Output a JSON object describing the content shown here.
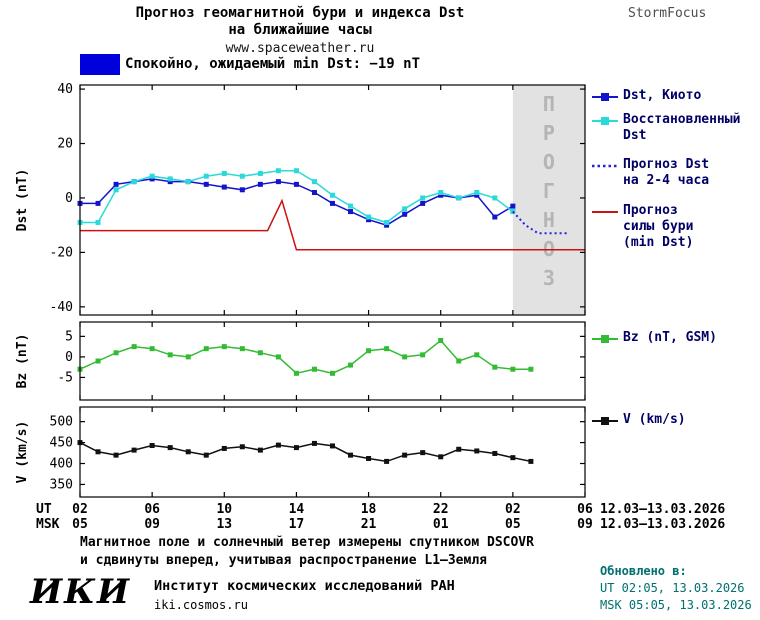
{
  "header": {
    "title_line1": "Прогноз геомагнитной бури и индекса Dst",
    "title_line2": "на ближайшие часы",
    "site": "www.spaceweather.ru",
    "brand": "StormFocus"
  },
  "status": {
    "text": "Спокойно, ожидаемый min Dst: −19 nT",
    "color": "#0000dd"
  },
  "legends": {
    "dst_kyoto": "Dst, Киото",
    "restored_line1": "Восстановленный",
    "restored_line2": "Dst",
    "forecast_line1": "Прогноз Dst",
    "forecast_line2": "на 2-4 часа",
    "storm_line1": "Прогноз",
    "storm_line2": "силы бури",
    "storm_line3": "(min Dst)",
    "bz": "Bz (nT, GSM)",
    "v": "V (km/s)"
  },
  "xaxis": {
    "ticks": [
      2,
      6,
      10,
      14,
      18,
      22,
      26,
      30
    ],
    "ut_row_label": "UT",
    "msk_row_label": "MSK",
    "ut_labels": [
      "02",
      "06",
      "10",
      "14",
      "18",
      "22",
      "02",
      "06"
    ],
    "msk_labels": [
      "05",
      "09",
      "13",
      "17",
      "21",
      "01",
      "05",
      "09"
    ],
    "ut_date": "12.03—13.03.2026",
    "msk_date": "12.03—13.03.2026"
  },
  "chart_data": [
    {
      "type": "line",
      "name": "dst",
      "ylabel": "Dst (nT)",
      "ylim": [
        -43,
        41.5
      ],
      "yticks": [
        40,
        20,
        0,
        -20,
        -40
      ],
      "xlim": [
        2,
        30
      ],
      "forecast_band": {
        "from": 26,
        "to": 30,
        "label": "ПРОГНОЗ",
        "fill": "#e2e2e2",
        "text_color": "#b5b5b5"
      },
      "series": [
        {
          "name": "Dst, Киото",
          "color": "#1414cc",
          "marker": "square",
          "x": [
            2,
            3,
            4,
            5,
            6,
            7,
            8,
            9,
            10,
            11,
            12,
            13,
            14,
            15,
            16,
            17,
            18,
            19,
            20,
            21,
            22,
            23,
            24,
            25,
            26
          ],
          "y": [
            -2,
            -2,
            5,
            6,
            7,
            6,
            6,
            5,
            4,
            3,
            5,
            6,
            5,
            2,
            -2,
            -5,
            -8,
            -10,
            -6,
            -2,
            1,
            0,
            1,
            -7,
            -3
          ]
        },
        {
          "name": "Восстановленный Dst",
          "color": "#2ad9d9",
          "marker": "square",
          "x": [
            2,
            3,
            4,
            5,
            6,
            7,
            8,
            9,
            10,
            11,
            12,
            13,
            14,
            15,
            16,
            17,
            18,
            19,
            20,
            21,
            22,
            23,
            24,
            25,
            26
          ],
          "y": [
            -9,
            -9,
            3,
            6,
            8,
            7,
            6,
            8,
            9,
            8,
            9,
            10,
            10,
            6,
            1,
            -3,
            -7,
            -9,
            -4,
            0,
            2,
            0,
            2,
            0,
            -5
          ]
        },
        {
          "name": "Прогноз Dst на 2-4 часа",
          "color": "#2222dd",
          "style": "dotted",
          "width": 2,
          "x": [
            26,
            26.7,
            27.4,
            28.2,
            29
          ],
          "y": [
            -5,
            -10,
            -13,
            -13,
            -13
          ]
        },
        {
          "name": "Прогноз силы бури (min Dst)",
          "color": "#cc1111",
          "x": [
            2,
            12.4,
            13.2,
            14,
            30
          ],
          "y": [
            -12,
            -12,
            -1,
            -19,
            -19
          ]
        }
      ]
    },
    {
      "type": "line",
      "name": "bz",
      "ylabel": "Bz (nT)",
      "ylim": [
        -10.5,
        8.5
      ],
      "yticks": [
        5,
        0,
        -5
      ],
      "xlim": [
        2,
        30
      ],
      "series": [
        {
          "name": "Bz (nT, GSM)",
          "color": "#33bb33",
          "marker": "square",
          "x": [
            2,
            3,
            4,
            5,
            6,
            7,
            8,
            9,
            10,
            11,
            12,
            13,
            14,
            15,
            16,
            17,
            18,
            19,
            20,
            21,
            22,
            23,
            24,
            25,
            26,
            27
          ],
          "y": [
            -3,
            -1,
            1,
            2.5,
            2,
            0.5,
            0,
            2,
            2.5,
            2,
            1,
            0,
            -4,
            -3,
            -4,
            -2,
            1.5,
            2,
            0,
            0.5,
            4,
            -1,
            0.5,
            -2.5,
            -3,
            -3
          ]
        }
      ]
    },
    {
      "type": "line",
      "name": "v",
      "ylabel": "V (km/s)",
      "ylim": [
        320,
        535
      ],
      "yticks": [
        500,
        450,
        400,
        350
      ],
      "xlim": [
        2,
        30
      ],
      "series": [
        {
          "name": "V (km/s)",
          "color": "#111111",
          "marker": "square",
          "x": [
            2,
            3,
            4,
            5,
            6,
            7,
            8,
            9,
            10,
            11,
            12,
            13,
            14,
            15,
            16,
            17,
            18,
            19,
            20,
            21,
            22,
            23,
            24,
            25,
            26,
            27
          ],
          "y": [
            450,
            428,
            420,
            432,
            443,
            438,
            428,
            420,
            436,
            440,
            432,
            444,
            438,
            448,
            442,
            420,
            412,
            405,
            420,
            426,
            416,
            434,
            430,
            424,
            414,
            405
          ]
        }
      ]
    }
  ],
  "footer": {
    "note_line1": "Магнитное поле и солнечный ветер измерены спутником DSCOVR",
    "note_line2": "и сдвинуты вперед, учитывая распространение L1—Земля",
    "updated_label": "Обновлено в:",
    "updated_ut": "UT  02:05, 13.03.2026",
    "updated_msk": "MSK 05:05, 13.03.2026",
    "logo": "ИКИ",
    "institute": "Институт космических исследований РАН",
    "institute_site": "iki.cosmos.ru"
  }
}
